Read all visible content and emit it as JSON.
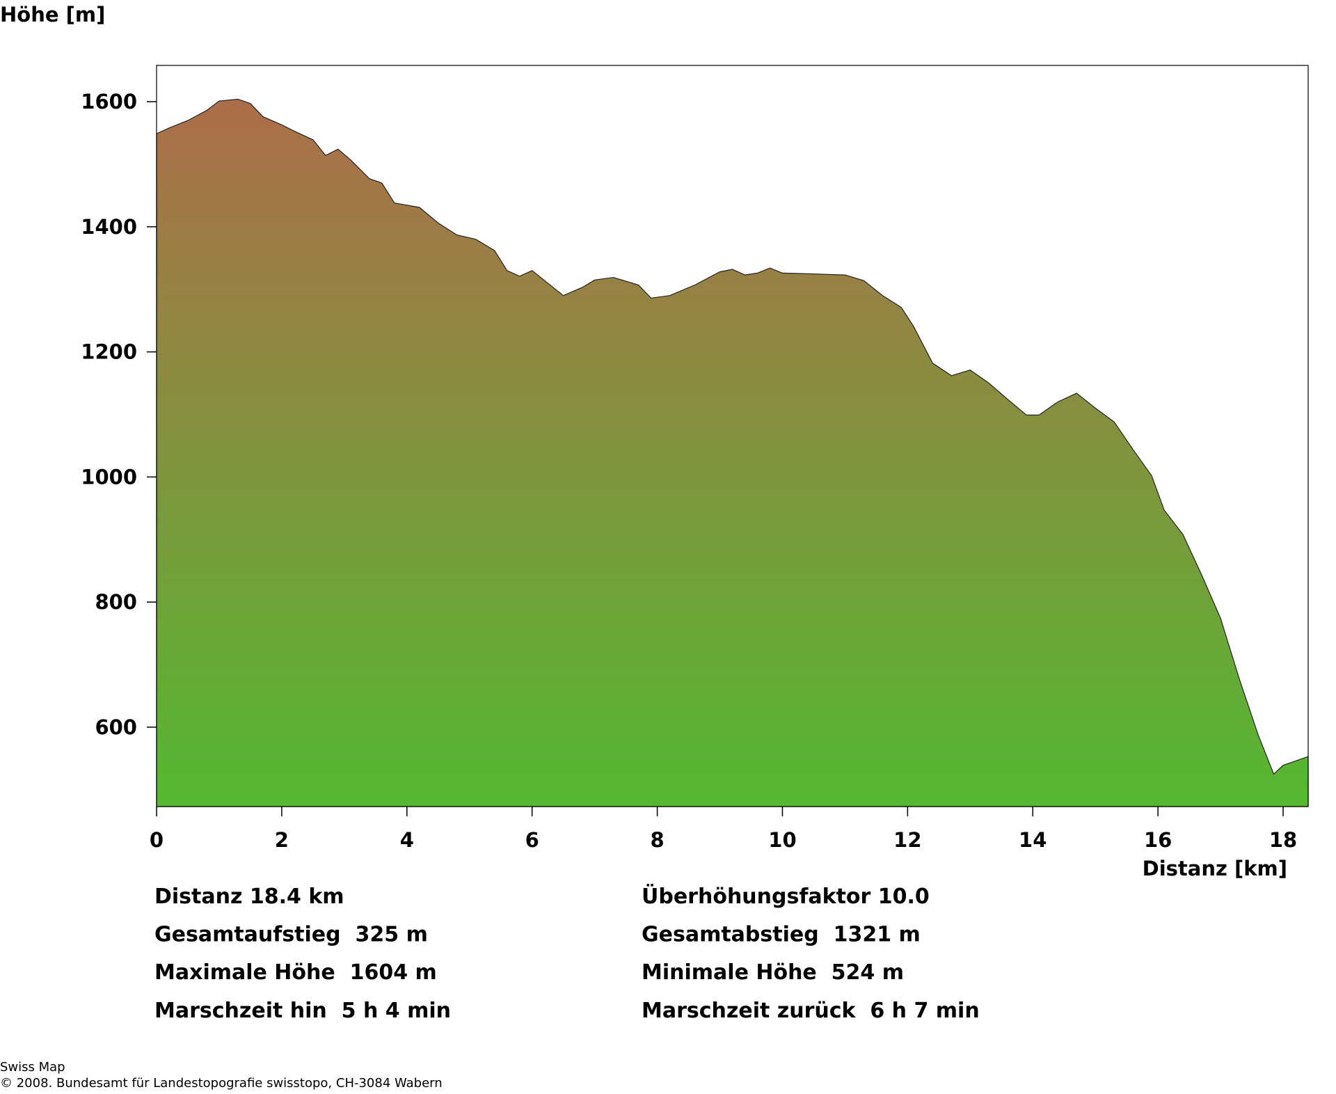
{
  "chart_data": {
    "type": "area",
    "y_label": "Höhe [m]",
    "x_label": "Distanz [km]",
    "x": [
      0,
      0.2,
      0.5,
      0.8,
      1.0,
      1.3,
      1.5,
      1.7,
      2.0,
      2.2,
      2.5,
      2.7,
      2.9,
      3.1,
      3.4,
      3.6,
      3.8,
      4.2,
      4.5,
      4.8,
      5.1,
      5.4,
      5.6,
      5.8,
      6.0,
      6.2,
      6.5,
      6.8,
      7.0,
      7.3,
      7.7,
      7.9,
      8.2,
      8.6,
      9.0,
      9.2,
      9.4,
      9.6,
      9.8,
      10.0,
      10.4,
      11.0,
      11.3,
      11.6,
      11.9,
      12.1,
      12.4,
      12.7,
      13.0,
      13.3,
      13.6,
      13.9,
      14.1,
      14.4,
      14.7,
      15.0,
      15.3,
      15.6,
      15.9,
      16.1,
      16.4,
      16.7,
      17.0,
      17.3,
      17.6,
      17.85,
      18.0,
      18.2,
      18.4
    ],
    "values": [
      1549,
      1558,
      1570,
      1586,
      1601,
      1604,
      1597,
      1576,
      1563,
      1553,
      1539,
      1514,
      1524,
      1507,
      1477,
      1470,
      1438,
      1431,
      1406,
      1387,
      1380,
      1362,
      1330,
      1321,
      1330,
      1314,
      1290,
      1303,
      1315,
      1319,
      1307,
      1286,
      1290,
      1307,
      1328,
      1332,
      1323,
      1326,
      1334,
      1326,
      1325,
      1323,
      1314,
      1290,
      1271,
      1240,
      1182,
      1162,
      1171,
      1150,
      1124,
      1099,
      1099,
      1120,
      1134,
      1110,
      1088,
      1044,
      1002,
      947,
      908,
      843,
      774,
      677,
      588,
      525,
      539,
      546,
      553
    ],
    "xlim": [
      0,
      18.4
    ],
    "xticks": [
      0,
      2,
      4,
      6,
      8,
      10,
      12,
      14,
      16,
      18
    ],
    "ylim": [
      473,
      1658
    ],
    "yticks": [
      600,
      800,
      1000,
      1200,
      1400,
      1600
    ]
  },
  "stats": {
    "left": [
      "Distanz 18.4 km",
      "Gesamtaufstieg  325 m",
      "Maximale Höhe  1604 m",
      "Marschzeit hin  5 h 4 min"
    ],
    "right": [
      "Überhöhungsfaktor 10.0",
      "Gesamtabstieg  1321 m",
      "Minimale Höhe  524 m",
      "Marschzeit zurück  6 h 7 min"
    ]
  },
  "footer": {
    "source": "Swiss Map",
    "copyright": "© 2008. Bundesamt für Landestopografie swisstopo, CH-3084 Wabern"
  }
}
